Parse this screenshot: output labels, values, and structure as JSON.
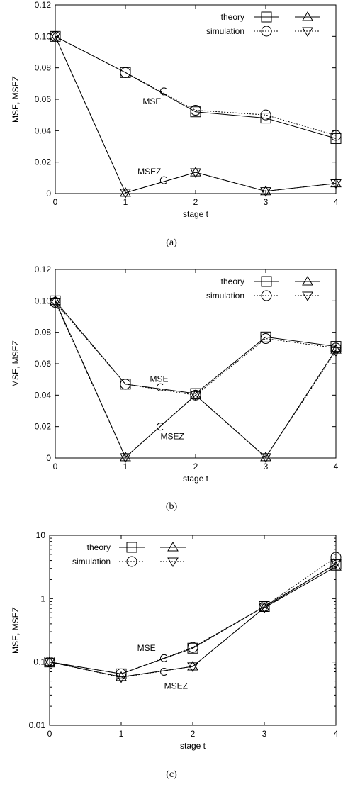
{
  "chart_data": [
    {
      "type": "line",
      "caption": "(a)",
      "xlabel": "stage t",
      "ylabel": "MSE, MSEZ",
      "yscale": "linear",
      "xlim": [
        0,
        4
      ],
      "ylim": [
        0,
        0.12
      ],
      "xticks": [
        0,
        1,
        2,
        3,
        4
      ],
      "yticks": [
        0,
        0.02,
        0.04,
        0.06,
        0.08,
        0.1,
        0.12
      ],
      "ytick_labels": [
        "0",
        "0.02",
        "0.04",
        "0.06",
        "0.08",
        "0.10",
        "0.12"
      ],
      "legend": {
        "position": "top-right",
        "row_labels": [
          "theory",
          "simulation"
        ]
      },
      "annotations": [
        {
          "text": "MSE",
          "x": 1.55,
          "y": 0.065
        },
        {
          "text": "MSEZ",
          "x": 1.55,
          "y": 0.0085
        }
      ],
      "series": [
        {
          "group": "MSE",
          "source": "theory",
          "marker": "square",
          "dash": "solid",
          "x": [
            0,
            1,
            2,
            3,
            4
          ],
          "y": [
            0.1,
            0.077,
            0.052,
            0.048,
            0.035
          ]
        },
        {
          "group": "MSE",
          "source": "simulation",
          "marker": "circle",
          "dash": "dotted",
          "x": [
            0,
            1,
            2,
            3,
            4
          ],
          "y": [
            0.1,
            0.077,
            0.053,
            0.05,
            0.037
          ]
        },
        {
          "group": "MSEZ",
          "source": "theory",
          "marker": "triangle-up",
          "dash": "solid",
          "x": [
            0,
            1,
            2,
            3,
            4
          ],
          "y": [
            0.1,
            0.0005,
            0.0135,
            0.0015,
            0.0065
          ]
        },
        {
          "group": "MSEZ",
          "source": "simulation",
          "marker": "triangle-down",
          "dash": "dotted",
          "x": [
            0,
            1,
            2,
            3,
            4
          ],
          "y": [
            0.1,
            0.0005,
            0.0135,
            0.0015,
            0.0065
          ]
        }
      ]
    },
    {
      "type": "line",
      "caption": "(b)",
      "xlabel": "stage t",
      "ylabel": "MSE, MSEZ",
      "yscale": "linear",
      "xlim": [
        0,
        4
      ],
      "ylim": [
        0,
        0.12
      ],
      "xticks": [
        0,
        1,
        2,
        3,
        4
      ],
      "yticks": [
        0,
        0.02,
        0.04,
        0.06,
        0.08,
        0.1,
        0.12
      ],
      "ytick_labels": [
        "0",
        "0.02",
        "0.04",
        "0.06",
        "0.08",
        "0.10",
        "0.12"
      ],
      "legend": {
        "position": "top-right",
        "row_labels": [
          "theory",
          "simulation"
        ]
      },
      "annotations": [
        {
          "text": "MSE",
          "x": 1.5,
          "y": 0.045
        },
        {
          "text": "MSEZ",
          "x": 1.5,
          "y": 0.02
        }
      ],
      "series": [
        {
          "group": "MSE",
          "source": "theory",
          "marker": "square",
          "dash": "solid",
          "x": [
            0,
            1,
            2,
            3,
            4
          ],
          "y": [
            0.1,
            0.047,
            0.041,
            0.077,
            0.071
          ]
        },
        {
          "group": "MSE",
          "source": "simulation",
          "marker": "circle",
          "dash": "dotted",
          "x": [
            0,
            1,
            2,
            3,
            4
          ],
          "y": [
            0.099,
            0.047,
            0.04,
            0.076,
            0.07
          ]
        },
        {
          "group": "MSEZ",
          "source": "theory",
          "marker": "triangle-up",
          "dash": "solid",
          "x": [
            0,
            1,
            2,
            3,
            4
          ],
          "y": [
            0.1,
            0.0005,
            0.04,
            0.0005,
            0.069
          ]
        },
        {
          "group": "MSEZ",
          "source": "simulation",
          "marker": "triangle-down",
          "dash": "dotted",
          "x": [
            0,
            1,
            2,
            3,
            4
          ],
          "y": [
            0.099,
            0.0005,
            0.04,
            0.0005,
            0.068
          ]
        }
      ]
    },
    {
      "type": "line",
      "caption": "(c)",
      "xlabel": "stage t",
      "ylabel": "MSE, MSEZ",
      "yscale": "log",
      "xlim": [
        0,
        4
      ],
      "ylim": [
        0.01,
        10
      ],
      "xticks": [
        0,
        1,
        2,
        3,
        4
      ],
      "yticks": [
        0.01,
        0.1,
        1,
        10
      ],
      "ytick_labels": [
        "0.01",
        "0.1",
        "1",
        "10"
      ],
      "legend": {
        "position": "top-left",
        "row_labels": [
          "theory",
          "simulation"
        ]
      },
      "annotations": [
        {
          "text": "MSE",
          "x": 1.6,
          "y": 0.115
        },
        {
          "text": "MSEZ",
          "x": 1.6,
          "y": 0.07
        }
      ],
      "series": [
        {
          "group": "MSE",
          "source": "theory",
          "marker": "square",
          "dash": "solid",
          "x": [
            0,
            1,
            2,
            3,
            4
          ],
          "y": [
            0.1,
            0.065,
            0.165,
            0.75,
            3.5
          ]
        },
        {
          "group": "MSE",
          "source": "simulation",
          "marker": "circle",
          "dash": "dotted",
          "x": [
            0,
            1,
            2,
            3,
            4
          ],
          "y": [
            0.1,
            0.065,
            0.17,
            0.75,
            4.5
          ]
        },
        {
          "group": "MSEZ",
          "source": "theory",
          "marker": "triangle-up",
          "dash": "solid",
          "x": [
            0,
            1,
            2,
            3,
            4
          ],
          "y": [
            0.1,
            0.058,
            0.085,
            0.72,
            3.2
          ]
        },
        {
          "group": "MSEZ",
          "source": "simulation",
          "marker": "triangle-down",
          "dash": "dotted",
          "x": [
            0,
            1,
            2,
            3,
            4
          ],
          "y": [
            0.1,
            0.057,
            0.085,
            0.72,
            3.6
          ]
        }
      ]
    }
  ]
}
